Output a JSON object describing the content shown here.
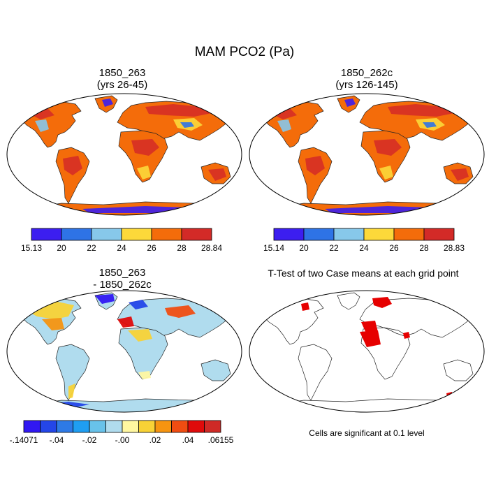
{
  "title": "MAM PCO2 (Pa)",
  "panels": [
    {
      "title_line1": "1850_263",
      "title_line2": "(yrs 26-45)"
    },
    {
      "title_line1": "1850_262c",
      "title_line2": "(yrs 126-145)"
    },
    {
      "title_line1": "1850_263",
      "title_line2": "- 1850_262c"
    },
    {
      "title_line1": "T-Test of two Case means at each grid point",
      "title_line2": ""
    }
  ],
  "significance_note": "Cells are significant at 0.1 level",
  "chart_data": [
    {
      "type": "heatmap",
      "title": "1850_263 (yrs 26-45)",
      "projection": "Robinson",
      "colorbar": {
        "min_label": "15.13",
        "max_label": "28.84",
        "tick_labels": [
          "15.13",
          "20",
          "22",
          "24",
          "26",
          "28",
          "28.84"
        ],
        "colors": [
          "#3c1ef0",
          "#2e73e6",
          "#87c8ea",
          "#fcd93a",
          "#f46c0a",
          "#d32a27"
        ]
      },
      "dominant_value_range": [
        26,
        28
      ]
    },
    {
      "type": "heatmap",
      "title": "1850_262c (yrs 126-145)",
      "projection": "Robinson",
      "colorbar": {
        "min_label": "15.14",
        "max_label": "28.83",
        "tick_labels": [
          "15.14",
          "20",
          "22",
          "24",
          "26",
          "28",
          "28.83"
        ],
        "colors": [
          "#3c1ef0",
          "#2e73e6",
          "#87c8ea",
          "#fcd93a",
          "#f46c0a",
          "#d32a27"
        ]
      },
      "dominant_value_range": [
        26,
        28
      ]
    },
    {
      "type": "heatmap",
      "title": "1850_263 - 1850_262c",
      "projection": "Robinson",
      "colorbar": {
        "tick_labels": [
          "-.14071",
          "-.04",
          "-.02",
          "-.00",
          ".02",
          ".04",
          ".06155"
        ],
        "colors": [
          "#3118f2",
          "#2446e8",
          "#2e7ae6",
          "#1f9ef2",
          "#68c2ea",
          "#b0dcee",
          "#fff7a0",
          "#f8d236",
          "#f69410",
          "#f04d12",
          "#df0b0b",
          "#cf2a26"
        ]
      }
    },
    {
      "type": "heatmap",
      "title": "T-Test of two Case means at each grid point",
      "projection": "Robinson",
      "significance_level": 0.1,
      "significant_color": "#e60000"
    }
  ]
}
